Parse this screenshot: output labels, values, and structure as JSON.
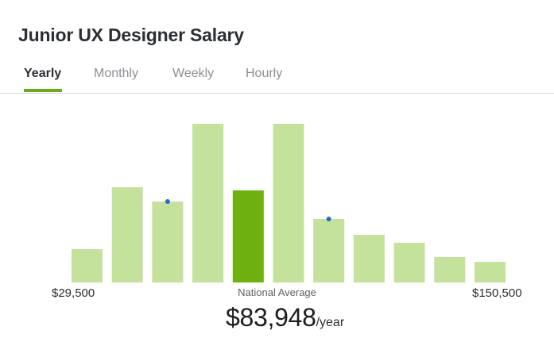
{
  "header": {
    "title": "Junior UX Designer Salary"
  },
  "tabs": [
    {
      "label": "Yearly",
      "active": true
    },
    {
      "label": "Monthly",
      "active": false
    },
    {
      "label": "Weekly",
      "active": false
    },
    {
      "label": "Hourly",
      "active": false
    }
  ],
  "colors": {
    "accent": "#6aac1b",
    "bar": "#c5e29c",
    "bar_highlight": "#6db00f",
    "marker": "#1f6fc5"
  },
  "chart_data": {
    "type": "bar",
    "title": "",
    "xlabel": "",
    "ylabel": "",
    "values": [
      21,
      60,
      51,
      100,
      58,
      100,
      40,
      30,
      25,
      16,
      13
    ],
    "highlight_index": 4,
    "marker_indices": [
      2,
      6
    ],
    "min_label": "$29,500",
    "max_label": "$150,500",
    "grid": false
  },
  "summary": {
    "label": "National Average",
    "value": "$83,948",
    "unit": "/year"
  }
}
